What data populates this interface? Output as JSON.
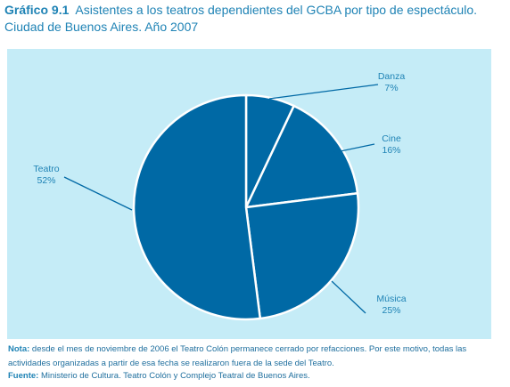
{
  "header": {
    "label": "Gráfico 9.1",
    "title": "Asistentes a los teatros dependientes del GCBA por tipo de espectáculo.",
    "subtitle": "Ciudad de Buenos Aires. Año 2007"
  },
  "colors": {
    "panel": "#c5ecf7",
    "slice": "#0069a5",
    "label": "#1f83b5",
    "separator": "#ffffff"
  },
  "chart_data": {
    "type": "pie",
    "slices": [
      {
        "name": "Danza",
        "value": 7,
        "value_label": "7%"
      },
      {
        "name": "Cine",
        "value": 16,
        "value_label": "16%"
      },
      {
        "name": "Música",
        "value": 25,
        "value_label": "25%"
      },
      {
        "name": "Teatro",
        "value": 52,
        "value_label": "52%"
      }
    ]
  },
  "notes": {
    "nota_label": "Nota:",
    "nota_text": "desde el mes de noviembre de 2006 el Teatro Colón permanece cerrado por refacciones. Por este motivo, todas las actividades organizadas a partir de esa fecha se realizaron fuera de la sede del Teatro.",
    "fuente_label": "Fuente:",
    "fuente_text": "Ministerio de Cultura. Teatro Colón y Complejo Teatral de Buenos Aires."
  }
}
